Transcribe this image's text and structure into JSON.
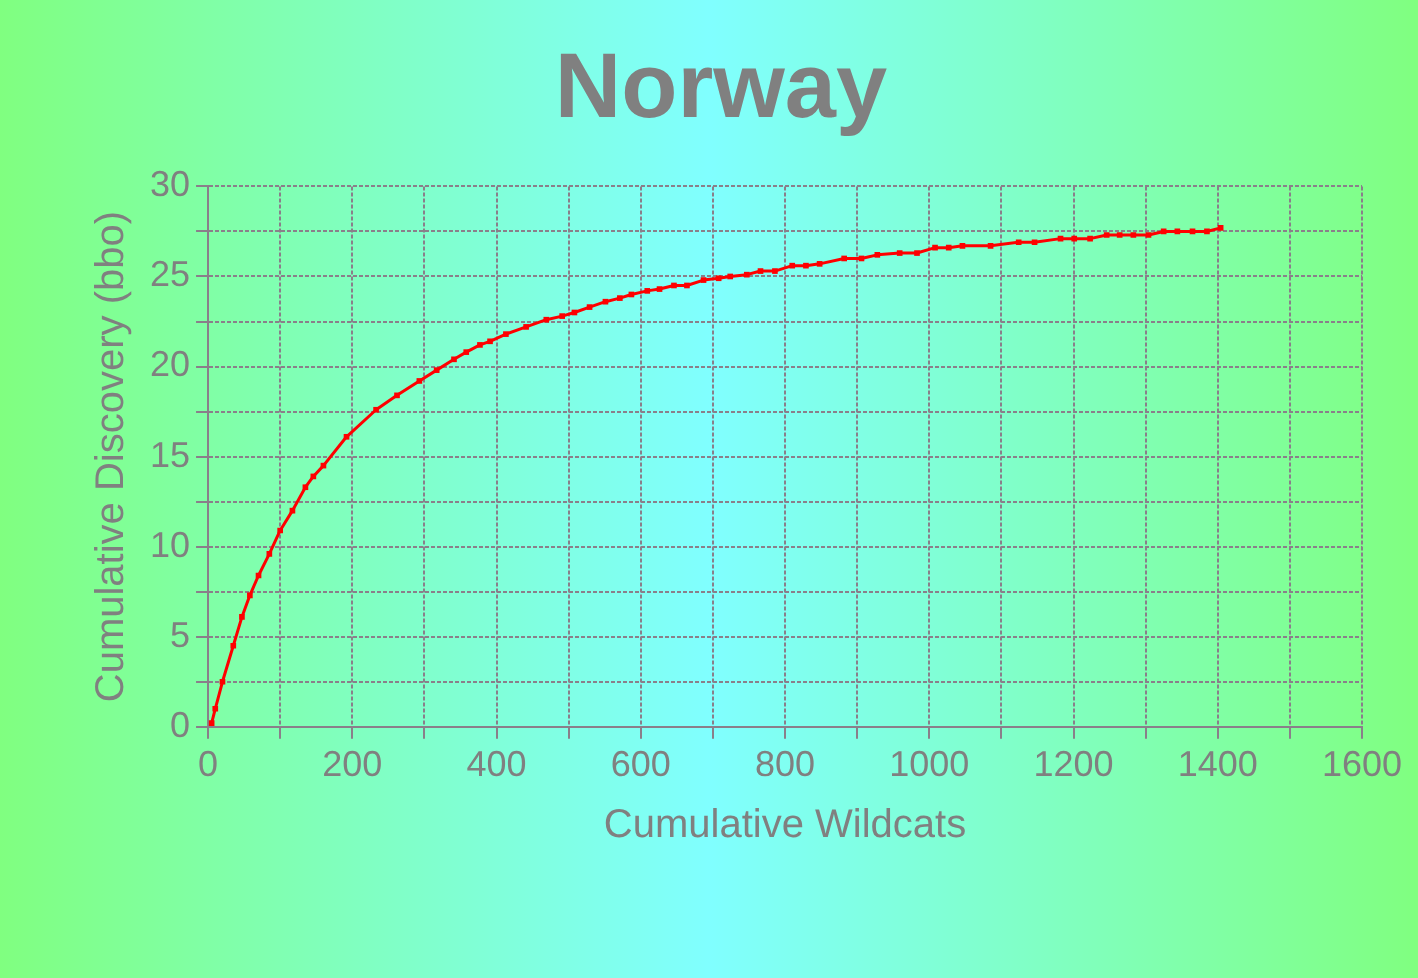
{
  "chart_data": {
    "type": "line",
    "title": "Norway",
    "xlabel": "Cumulative Wildcats",
    "ylabel": "Cumulative Discovery (bbo)",
    "xlim": [
      0,
      1600
    ],
    "ylim": [
      0,
      30
    ],
    "xticks": [
      0,
      {
        "value": 100,
        "label": null
      },
      200,
      {
        "value": 300,
        "label": null
      },
      400,
      {
        "value": 500,
        "label": null
      },
      600,
      {
        "value": 700,
        "label": null
      },
      800,
      {
        "value": 900,
        "label": null
      },
      1000,
      {
        "value": 1100,
        "label": null
      },
      1200,
      {
        "value": 1300,
        "label": null
      },
      1400,
      {
        "value": 1500,
        "label": null
      },
      1600
    ],
    "yticks": [
      0,
      {
        "value": 2.5,
        "label": null
      },
      5,
      {
        "value": 7.5,
        "label": null
      },
      10,
      {
        "value": 12.5,
        "label": null
      },
      15,
      {
        "value": 17.5,
        "label": null
      },
      20,
      {
        "value": 22.5,
        "label": null
      },
      25,
      {
        "value": 27.5,
        "label": null
      },
      30
    ],
    "grid": true,
    "legend": false,
    "marker": "square",
    "line_style": "solid",
    "series": [
      {
        "color": "#ff0000",
        "x": [
          5,
          10,
          20,
          35,
          47,
          58,
          70,
          85,
          100,
          117,
          135,
          146,
          160,
          192,
          233,
          262,
          293,
          317,
          341,
          358,
          377,
          391,
          413,
          441,
          469,
          491,
          508,
          529,
          551,
          571,
          587,
          609,
          626,
          646,
          664,
          687,
          708,
          724,
          747,
          766,
          786,
          810,
          829,
          848,
          882,
          906,
          928,
          959,
          983,
          1008,
          1027,
          1046,
          1085,
          1124,
          1146,
          1182,
          1201,
          1223,
          1246,
          1264,
          1283,
          1304,
          1325,
          1344,
          1365,
          1385,
          1404
        ],
        "values": [
          0.2,
          1.0,
          2.5,
          4.5,
          6.1,
          7.3,
          8.4,
          9.6,
          10.9,
          12.0,
          13.3,
          13.9,
          14.5,
          16.1,
          17.6,
          18.4,
          19.2,
          19.8,
          20.4,
          20.8,
          21.2,
          21.4,
          21.8,
          22.2,
          22.6,
          22.8,
          23.0,
          23.3,
          23.6,
          23.8,
          24.0,
          24.2,
          24.3,
          24.5,
          24.5,
          24.8,
          24.9,
          25.0,
          25.1,
          25.3,
          25.3,
          25.6,
          25.6,
          25.7,
          26.0,
          26.0,
          26.2,
          26.3,
          26.3,
          26.6,
          26.6,
          26.7,
          26.7,
          26.9,
          26.9,
          27.1,
          27.1,
          27.1,
          27.3,
          27.3,
          27.3,
          27.3,
          27.5,
          27.5,
          27.5,
          27.5,
          27.7
        ]
      }
    ]
  }
}
